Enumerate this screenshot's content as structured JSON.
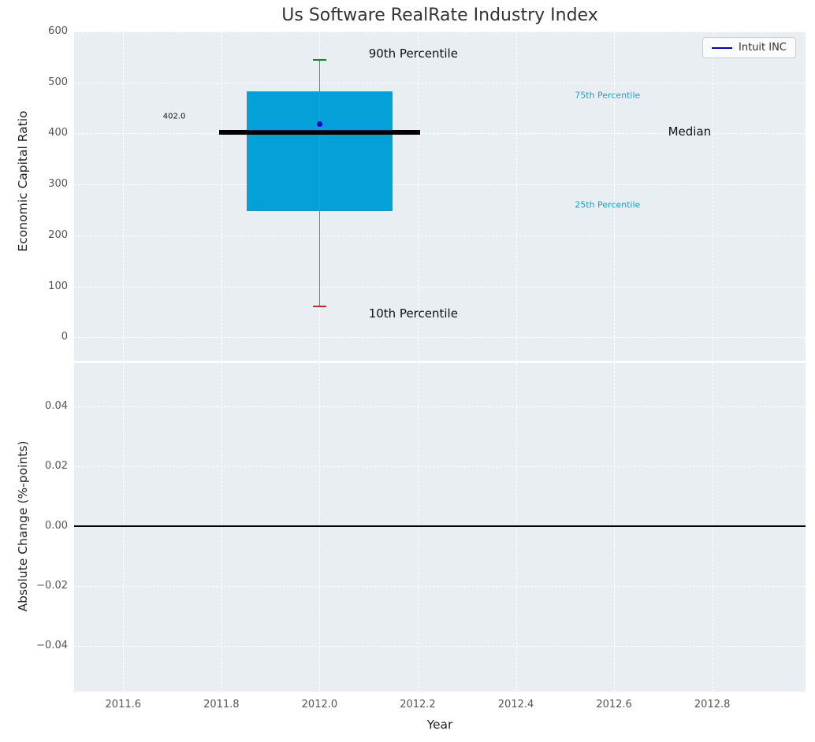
{
  "figure": {
    "title": "Us Software RealRate Industry Index",
    "legend": {
      "label": "Intuit INC",
      "line_color": "#0000cd",
      "position": "top-right"
    },
    "colors": {
      "plot_bg": "#e9eef2",
      "grid": "#ffffff",
      "box_fill": "#04a1d8",
      "median_line": "#000000",
      "company_dot": "#0000cd",
      "p90_cap": "#0a8f0a",
      "p10_cap": "#e02020",
      "whisker": "#808080",
      "zero_line": "#000000",
      "tick_label": "#555555",
      "annotation_dark": "#111111",
      "annotation_cyan": "#1b9fd0",
      "title_color": "#333333"
    }
  },
  "chart_data": [
    {
      "type": "box",
      "title": "Us Software RealRate Industry Index",
      "ylabel": "Economic Capital Ratio",
      "xlim": [
        2011.5,
        2012.99
      ],
      "ylim": [
        -46,
        600
      ],
      "grid": true,
      "show_xtick_labels": false,
      "yticks": [
        {
          "v": 0,
          "label": "0"
        },
        {
          "v": 100,
          "label": "100"
        },
        {
          "v": 200,
          "label": "200"
        },
        {
          "v": 300,
          "label": "300"
        },
        {
          "v": 400,
          "label": "400"
        },
        {
          "v": 500,
          "label": "500"
        },
        {
          "v": 600,
          "label": "600"
        }
      ],
      "xticks": [
        {
          "v": 2011.6,
          "label": "2011.6"
        },
        {
          "v": 2011.8,
          "label": "2011.8"
        },
        {
          "v": 2012.0,
          "label": "2012.0"
        },
        {
          "v": 2012.2,
          "label": "2012.2"
        },
        {
          "v": 2012.4,
          "label": "2012.4"
        },
        {
          "v": 2012.6,
          "label": "2012.6"
        },
        {
          "v": 2012.8,
          "label": "2012.8"
        }
      ],
      "box": {
        "x": 2012.0,
        "box_half_width": 0.148,
        "median_half_width": 0.205,
        "cap_half_width": 0.013,
        "p10": 60,
        "p25": 248,
        "median": 402,
        "p75": 483,
        "p90": 545,
        "company_name": "Intuit INC",
        "company_value": 418,
        "median_value_label": "402.0"
      },
      "annotations": [
        {
          "text": "90th Percentile",
          "x": 2012.1,
          "y": 557,
          "size": 15,
          "color": "dark"
        },
        {
          "text": "75th Percentile",
          "x": 2012.52,
          "y": 475,
          "size": 11,
          "color": "cyan"
        },
        {
          "text": "Median",
          "x": 2012.71,
          "y": 404,
          "size": 15,
          "color": "dark"
        },
        {
          "text": "25th Percentile",
          "x": 2012.52,
          "y": 260,
          "size": 11,
          "color": "cyan"
        },
        {
          "text": "10th Percentile",
          "x": 2012.1,
          "y": 47,
          "size": 15,
          "color": "dark"
        },
        {
          "text": "402.0",
          "x": 2011.681,
          "y": 433,
          "size": 10,
          "color": "dark"
        }
      ]
    },
    {
      "type": "line",
      "ylabel": "Absolute Change (%-points)",
      "xlabel": "Year",
      "xlim": [
        2011.5,
        2012.99
      ],
      "ylim": [
        -0.0551,
        0.0543
      ],
      "grid": true,
      "show_xtick_labels": true,
      "zero_line": 0,
      "yticks": [
        {
          "v": 0.04,
          "label": "0.04"
        },
        {
          "v": 0.02,
          "label": "0.02"
        },
        {
          "v": 0.0,
          "label": "0.00"
        },
        {
          "v": -0.02,
          "label": "−0.02"
        },
        {
          "v": -0.04,
          "label": "−0.04"
        }
      ],
      "xticks": [
        {
          "v": 2011.6,
          "label": "2011.6"
        },
        {
          "v": 2011.8,
          "label": "2011.8"
        },
        {
          "v": 2012.0,
          "label": "2012.0"
        },
        {
          "v": 2012.2,
          "label": "2012.2"
        },
        {
          "v": 2012.4,
          "label": "2012.4"
        },
        {
          "v": 2012.6,
          "label": "2012.6"
        },
        {
          "v": 2012.8,
          "label": "2012.8"
        }
      ],
      "series": []
    }
  ]
}
